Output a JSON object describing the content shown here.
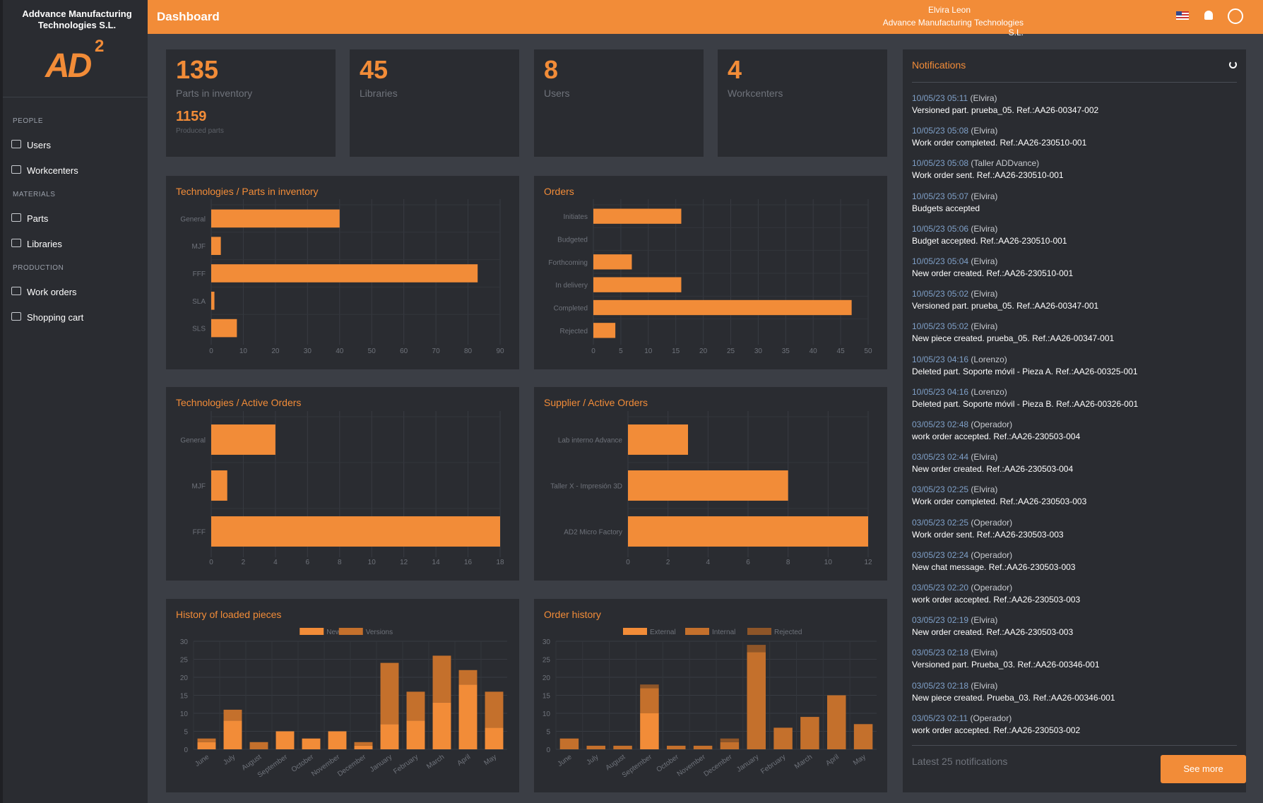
{
  "header": {
    "title": "Dashboard",
    "user": "Elvira Leon",
    "company": "Advance Manufacturing Technologies S.L."
  },
  "sidebar": {
    "brand": "Addvance Manufacturing Technologies S.L.",
    "logo": "AD",
    "logo_sup": "2",
    "sections": [
      {
        "title": "PEOPLE",
        "items": [
          "Users",
          "Workcenters"
        ]
      },
      {
        "title": "MATERIALS",
        "items": [
          "Parts",
          "Libraries"
        ]
      },
      {
        "title": "PRODUCTION",
        "items": [
          "Work orders",
          "Shopping cart"
        ]
      }
    ]
  },
  "stats": [
    {
      "value": 135,
      "label": "Parts in inventory",
      "sub_value": 1159,
      "sub_label": "Produced parts"
    },
    {
      "value": 45,
      "label": "Libraries"
    },
    {
      "value": 8,
      "label": "Users"
    },
    {
      "value": 4,
      "label": "Workcenters"
    }
  ],
  "chart_data": [
    {
      "type": "hbar",
      "title": "Technologies / Parts in inventory",
      "categories": [
        "General",
        "MJF",
        "FFF",
        "SLA",
        "SLS"
      ],
      "values": [
        40,
        3,
        83,
        1,
        8
      ],
      "color": "#f28c38",
      "xlim": [
        0,
        90
      ],
      "xticks": [
        0,
        10,
        20,
        30,
        40,
        50,
        60,
        70,
        80,
        90
      ],
      "grid": true
    },
    {
      "type": "hbar",
      "title": "Orders",
      "categories": [
        "Initiates",
        "Budgeted",
        "Forthcoming",
        "In delivery",
        "Completed",
        "Rejected"
      ],
      "values": [
        16,
        0,
        7,
        16,
        47,
        4
      ],
      "color": "#f28c38",
      "xlim": [
        0,
        50
      ],
      "xticks": [
        0,
        5,
        10,
        15,
        20,
        25,
        30,
        35,
        40,
        45,
        50
      ],
      "grid": true
    },
    {
      "type": "hbar",
      "title": "Technologies / Active Orders",
      "categories": [
        "General",
        "MJF",
        "FFF"
      ],
      "values": [
        4,
        1,
        18
      ],
      "color": "#f28c38",
      "xlim": [
        0,
        18
      ],
      "xticks": [
        0,
        2,
        4,
        6,
        8,
        10,
        12,
        14,
        16,
        18
      ],
      "grid": true
    },
    {
      "type": "hbar",
      "title": "Supplier / Active Orders",
      "categories": [
        "Lab interno Advance",
        "Taller X - Impresión 3D",
        "AD2 Micro Factory"
      ],
      "values": [
        3,
        8,
        12
      ],
      "color": "#f28c38",
      "xlim": [
        0,
        12
      ],
      "xticks": [
        0,
        2,
        4,
        6,
        8,
        10,
        12
      ],
      "grid": true
    },
    {
      "type": "bar",
      "stacked": true,
      "title": "History of loaded pieces",
      "categories": [
        "June",
        "July",
        "August",
        "September",
        "October",
        "November",
        "December",
        "January",
        "February",
        "March",
        "April",
        "May"
      ],
      "series": [
        {
          "name": "New",
          "color": "#f28c38",
          "values": [
            2,
            8,
            0,
            5,
            3,
            5,
            1,
            7,
            8,
            13,
            18,
            6
          ]
        },
        {
          "name": "Versions",
          "color": "#c4702c",
          "values": [
            1,
            3,
            2,
            0,
            0,
            0,
            1,
            17,
            8,
            13,
            4,
            10
          ]
        }
      ],
      "ylim": [
        0,
        30
      ],
      "yticks": [
        0,
        5,
        10,
        15,
        20,
        25,
        30
      ],
      "grid": true
    },
    {
      "type": "bar",
      "stacked": true,
      "title": "Order history",
      "categories": [
        "June",
        "July",
        "August",
        "September",
        "October",
        "November",
        "December",
        "January",
        "February",
        "March",
        "April",
        "May"
      ],
      "series": [
        {
          "name": "External",
          "color": "#f28c38",
          "values": [
            0,
            0,
            0,
            10,
            0,
            0,
            0,
            0,
            0,
            0,
            0,
            0
          ]
        },
        {
          "name": "Internal",
          "color": "#c4702c",
          "values": [
            3,
            1,
            1,
            7,
            1,
            1,
            2,
            27,
            6,
            9,
            15,
            7
          ]
        },
        {
          "name": "Rejected",
          "color": "#8e5528",
          "values": [
            0,
            0,
            0,
            1,
            0,
            0,
            1,
            2,
            0,
            0,
            0,
            0
          ]
        }
      ],
      "ylim": [
        0,
        30
      ],
      "yticks": [
        0,
        5,
        10,
        15,
        20,
        25,
        30
      ],
      "grid": true
    }
  ],
  "notifications": {
    "title": "Notifications",
    "items": [
      {
        "time": "10/05/23 05:11",
        "user": "(Elvira)",
        "text": "Versioned part. prueba_05. Ref.:AA26-00347-002"
      },
      {
        "time": "10/05/23 05:08",
        "user": "(Elvira)",
        "text": "Work order completed. Ref.:AA26-230510-001"
      },
      {
        "time": "10/05/23 05:08",
        "user": "(Taller ADDvance)",
        "text": "Work order sent. Ref.:AA26-230510-001"
      },
      {
        "time": "10/05/23 05:07",
        "user": "(Elvira)",
        "text": "Budgets accepted"
      },
      {
        "time": "10/05/23 05:06",
        "user": "(Elvira)",
        "text": "Budget accepted. Ref.:AA26-230510-001"
      },
      {
        "time": "10/05/23 05:04",
        "user": "(Elvira)",
        "text": "New order created. Ref.:AA26-230510-001"
      },
      {
        "time": "10/05/23 05:02",
        "user": "(Elvira)",
        "text": "Versioned part. prueba_05. Ref.:AA26-00347-001"
      },
      {
        "time": "10/05/23 05:02",
        "user": "(Elvira)",
        "text": "New piece created. prueba_05. Ref.:AA26-00347-001"
      },
      {
        "time": "10/05/23 04:16",
        "user": "(Lorenzo)",
        "text": "Deleted part. Soporte móvil - Pieza A. Ref.:AA26-00325-001"
      },
      {
        "time": "10/05/23 04:16",
        "user": "(Lorenzo)",
        "text": "Deleted part. Soporte móvil - Pieza B. Ref.:AA26-00326-001"
      },
      {
        "time": "03/05/23 02:48",
        "user": "(Operador)",
        "text": "work order accepted. Ref.:AA26-230503-004"
      },
      {
        "time": "03/05/23 02:44",
        "user": "(Elvira)",
        "text": "New order created. Ref.:AA26-230503-004"
      },
      {
        "time": "03/05/23 02:25",
        "user": "(Elvira)",
        "text": "Work order completed. Ref.:AA26-230503-003"
      },
      {
        "time": "03/05/23 02:25",
        "user": "(Operador)",
        "text": "Work order sent. Ref.:AA26-230503-003"
      },
      {
        "time": "03/05/23 02:24",
        "user": "(Operador)",
        "text": "New chat message. Ref.:AA26-230503-003"
      },
      {
        "time": "03/05/23 02:20",
        "user": "(Operador)",
        "text": "work order accepted. Ref.:AA26-230503-003"
      },
      {
        "time": "03/05/23 02:19",
        "user": "(Elvira)",
        "text": "New order created. Ref.:AA26-230503-003"
      },
      {
        "time": "03/05/23 02:18",
        "user": "(Elvira)",
        "text": "Versioned part. Prueba_03. Ref.:AA26-00346-001"
      },
      {
        "time": "03/05/23 02:18",
        "user": "(Elvira)",
        "text": "New piece created. Prueba_03. Ref.:AA26-00346-001"
      },
      {
        "time": "03/05/23 02:11",
        "user": "(Operador)",
        "text": "work order accepted. Ref.:AA26-230503-002"
      }
    ],
    "footer": "Latest 25 notifications",
    "button": "See more"
  }
}
